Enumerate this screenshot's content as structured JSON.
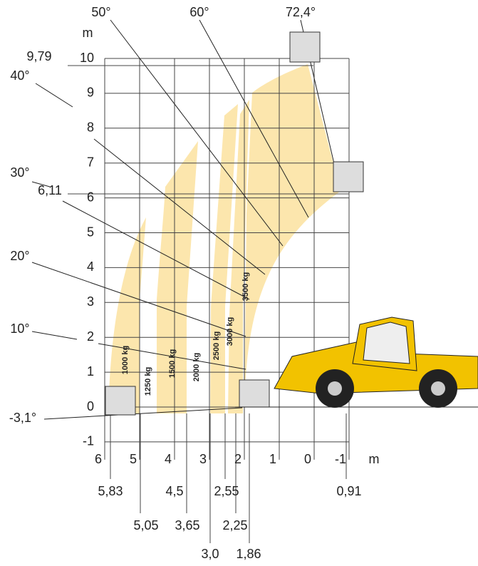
{
  "y_axis": {
    "unit": "m",
    "ticks": [
      10,
      9,
      8,
      7,
      6,
      5,
      4,
      3,
      2,
      1,
      0,
      -1
    ]
  },
  "x_axis": {
    "unit": "m",
    "ticks": [
      6,
      5,
      4,
      3,
      2,
      1,
      0,
      -1
    ]
  },
  "heights": [
    "9,79",
    "6,11"
  ],
  "angles": [
    "50°",
    "60°",
    "72,4°",
    "40°",
    "30°",
    "20°",
    "10°",
    "-3,1°"
  ],
  "reach": [
    "5,83",
    "4,5",
    "2,55",
    "0,91",
    "5,05",
    "3,65",
    "2,25",
    "3,0",
    "1,86"
  ],
  "loads": [
    "1000 kg",
    "1250 kg",
    "1500 kg",
    "2000 kg",
    "2500 kg",
    "3000 kg",
    "3500 kg"
  ]
}
